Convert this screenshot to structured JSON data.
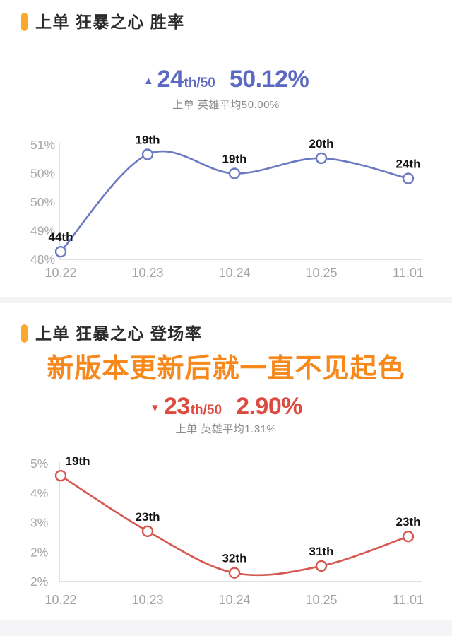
{
  "page": {
    "background": "#ffffff",
    "divider_color": "#f4f4f6",
    "footer_color": "#f5f5f7"
  },
  "sections": [
    {
      "title": "上单 狂暴之心 胜率",
      "accent_color": "#f9a92c",
      "trend_glyph": "▲",
      "trend_direction": "up",
      "rank": "24",
      "rank_suffix": "th/50",
      "value": "50.12%",
      "stat_color": "#5b69c2",
      "average_note": "上单 英雄平均50.00%"
    },
    {
      "title": "上单 狂暴之心 登场率",
      "accent_color": "#f9a92c",
      "headline": "新版本更新后就一直不见起色",
      "headline_color": "#f6881c",
      "trend_glyph": "▼",
      "trend_direction": "down",
      "rank": "23",
      "rank_suffix": "th/50",
      "value": "2.90%",
      "stat_color": "#dd4a40",
      "average_note": "上单 英雄平均1.31%"
    }
  ],
  "chart_data": [
    {
      "type": "line",
      "title": "上单 狂暴之心 胜率",
      "ylabel": "胜率",
      "x": [
        "10.22",
        "10.23",
        "10.24",
        "10.25",
        "11.01"
      ],
      "values": [
        48.2,
        50.75,
        50.25,
        50.65,
        50.12
      ],
      "point_labels": [
        "44th",
        "19th",
        "19th",
        "20th",
        "24th"
      ],
      "y_tick_labels": [
        "48%",
        "49%",
        "50%",
        "50%",
        "51%"
      ],
      "ylim": [
        48,
        51
      ],
      "grid": false,
      "legend": false,
      "line_color": "#6b79c2",
      "marker_fill": "#ffffff",
      "axis_color": "#d7d7d7"
    },
    {
      "type": "line",
      "title": "上单 狂暴之心 登场率",
      "ylabel": "登场率",
      "x": [
        "10.22",
        "10.23",
        "10.24",
        "10.25",
        "11.01"
      ],
      "values": [
        4.65,
        3.05,
        1.85,
        2.05,
        2.9
      ],
      "point_labels": [
        "19th",
        "23th",
        "32th",
        "31th",
        "23th"
      ],
      "y_tick_labels": [
        "2%",
        "2%",
        "3%",
        "4%",
        "5%"
      ],
      "ylim": [
        1.6,
        5.0
      ],
      "grid": false,
      "legend": false,
      "line_color": "#d5574f",
      "marker_fill": "#ffffff",
      "axis_color": "#d7d7d7"
    }
  ]
}
